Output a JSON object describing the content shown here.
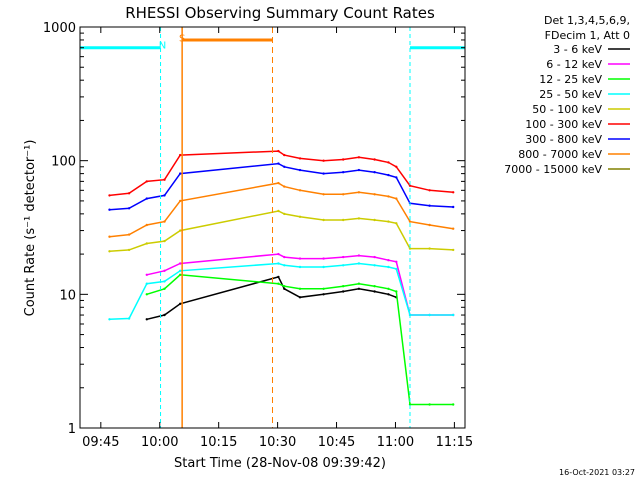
{
  "chart_data": {
    "type": "line",
    "title": "RHESSI Observing Summary Count Rates",
    "xlabel": "Start Time (28-Nov-08 09:39:42)",
    "ylabel": "Count Rate (s⁻¹ detector⁻¹)",
    "x_unit": "minutes after 09:39:42",
    "xlim": [
      0,
      98
    ],
    "ylim": [
      1,
      1000
    ],
    "yscale": "log",
    "grid": false,
    "legend_position": "top-right",
    "x_ticks": [
      {
        "label": "09:45",
        "x": 5.3
      },
      {
        "label": "10:00",
        "x": 20.3
      },
      {
        "label": "10:15",
        "x": 35.3
      },
      {
        "label": "10:30",
        "x": 50.3
      },
      {
        "label": "10:45",
        "x": 65.3
      },
      {
        "label": "11:00",
        "x": 80.3
      },
      {
        "label": "11:15",
        "x": 95.3
      }
    ],
    "y_ticks": [
      {
        "label": "1",
        "y": 1
      },
      {
        "label": "10",
        "y": 10
      },
      {
        "label": "100",
        "y": 100
      },
      {
        "label": "1000",
        "y": 1000
      }
    ],
    "legend_header": [
      "Det 1,3,4,5,6,9,",
      "FDecim 1, Att 0"
    ],
    "footer_date": "16-Oct-2021 03:27",
    "series": [
      {
        "name": "3 - 6 keV",
        "color": "#000000",
        "x": [
          7.5,
          12.5,
          17,
          21.5,
          25.5,
          50.5,
          52,
          56,
          62,
          67,
          71,
          75,
          78.5,
          80.5
        ],
        "y": [
          null,
          null,
          6.5,
          7,
          8.5,
          13.5,
          11,
          9.5,
          10,
          10.5,
          11,
          10.5,
          10,
          9.5
        ]
      },
      {
        "name": "6 - 12 keV",
        "color": "#ff00ff",
        "x": [
          7.5,
          12.5,
          17,
          21.5,
          25.5,
          50.5,
          52,
          56,
          62,
          67,
          71,
          75,
          78.5,
          80.5,
          84,
          89,
          95
        ],
        "y": [
          null,
          null,
          14,
          15,
          17,
          20,
          19,
          18.5,
          18.5,
          19,
          19.5,
          19,
          18,
          17.5,
          7,
          7,
          7
        ]
      },
      {
        "name": "12 - 25 keV",
        "color": "#00ff00",
        "x": [
          7.5,
          12.5,
          17,
          21.5,
          25.5,
          50.5,
          52,
          56,
          62,
          67,
          71,
          75,
          78.5,
          80.5,
          84,
          89,
          95
        ],
        "y": [
          null,
          null,
          10,
          11,
          14,
          12,
          11.5,
          11,
          11,
          11.5,
          12,
          11.5,
          11,
          10.5,
          1.5,
          1.5,
          1.5
        ]
      },
      {
        "name": "25 - 50 keV",
        "color": "#00ffff",
        "x": [
          7.5,
          12.5,
          17,
          21.5,
          25.5,
          50.5,
          52,
          56,
          62,
          67,
          71,
          75,
          78.5,
          80.5,
          84,
          89,
          95
        ],
        "y": [
          6.5,
          6.6,
          12,
          12.5,
          15,
          17,
          16.5,
          16,
          16,
          16.5,
          17,
          16.5,
          16,
          15.5,
          7,
          7,
          7
        ]
      },
      {
        "name": "50 - 100 keV",
        "color": "#cccc00",
        "x": [
          7.5,
          12.5,
          17,
          21.5,
          25.5,
          50.5,
          52,
          56,
          62,
          67,
          71,
          75,
          78.5,
          80.5,
          84,
          89,
          95
        ],
        "y": [
          21,
          21.5,
          24,
          25,
          30,
          42,
          40,
          38,
          36,
          36,
          37,
          36,
          35,
          34,
          22,
          22,
          21.5
        ]
      },
      {
        "name": "100 - 300 keV",
        "color": "#ff0000",
        "x": [
          7.5,
          12.5,
          17,
          21.5,
          25.5,
          50.5,
          52,
          56,
          62,
          67,
          71,
          75,
          78.5,
          80.5,
          84,
          89,
          95
        ],
        "y": [
          55,
          57,
          70,
          72,
          110,
          118,
          110,
          104,
          100,
          102,
          106,
          102,
          97,
          90,
          65,
          60,
          58
        ]
      },
      {
        "name": "300 - 800 keV",
        "color": "#0000ff",
        "x": [
          7.5,
          12.5,
          17,
          21.5,
          25.5,
          50.5,
          52,
          56,
          62,
          67,
          71,
          75,
          78.5,
          80.5,
          84,
          89,
          95
        ],
        "y": [
          43,
          44,
          52,
          55,
          80,
          95,
          90,
          85,
          80,
          82,
          85,
          82,
          78,
          75,
          48,
          46,
          45
        ]
      },
      {
        "name": "800 - 7000 keV",
        "color": "#ff8000",
        "x": [
          7.5,
          12.5,
          17,
          21.5,
          25.5,
          50.5,
          52,
          56,
          62,
          67,
          71,
          75,
          78.5,
          80.5,
          84,
          89,
          95
        ],
        "y": [
          27,
          28,
          33,
          35,
          50,
          68,
          64,
          60,
          56,
          56,
          58,
          56,
          54,
          52,
          35,
          33,
          31
        ]
      },
      {
        "name": "7000 - 15000 keV",
        "color": "#808000",
        "x": [
          7.5,
          12.5,
          17,
          21.5,
          25.5,
          50.5,
          52,
          56,
          62,
          67,
          71,
          75,
          78.5,
          80.5,
          84,
          89,
          95
        ],
        "y": [
          null,
          null,
          null,
          null,
          null,
          null,
          null,
          null,
          null,
          null,
          null,
          null,
          null,
          null,
          null,
          null,
          null
        ]
      }
    ],
    "annotations": [
      {
        "text": "N",
        "color": "#00ffff",
        "x": 21,
        "y": 690
      },
      {
        "text": "S",
        "color": "#ff8000",
        "x": 26,
        "y": 780
      }
    ],
    "night_bars": [
      [
        0,
        20.5
      ],
      [
        84,
        98
      ]
    ],
    "saa_bar": [
      26,
      49
    ]
  }
}
